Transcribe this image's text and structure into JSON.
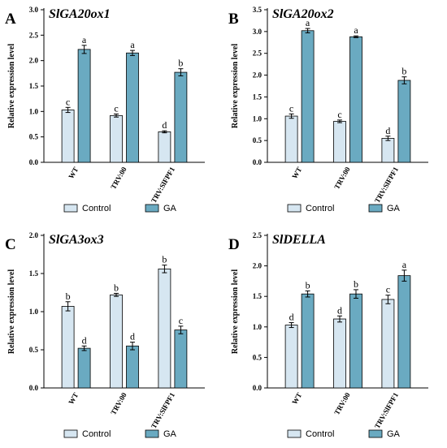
{
  "colors": {
    "control": "#d6e6f1",
    "ga": "#6aaac1",
    "axis": "#000000",
    "text": "#000000"
  },
  "chart_data": [
    {
      "type": "bar",
      "panel_letter": "A",
      "title": "SlGA20ox1",
      "ylabel": "Relative expression level",
      "xlabel": "",
      "categories": [
        "WT",
        "TRV:00",
        "TRV:SlFPF1"
      ],
      "ylim": [
        0,
        3.0
      ],
      "yticks": [
        0.0,
        0.5,
        1.0,
        1.5,
        2.0,
        2.5,
        3.0
      ],
      "ytick_labels": [
        "0.0",
        "0.5",
        "1.0",
        "1.5",
        "2.0",
        "2.5",
        "3.0"
      ],
      "series": [
        {
          "name": "Control",
          "values": [
            1.03,
            0.92,
            0.6
          ],
          "errors": [
            0.05,
            0.03,
            0.02
          ],
          "sig": [
            "c",
            "c",
            "d"
          ]
        },
        {
          "name": "GA",
          "values": [
            2.22,
            2.15,
            1.77
          ],
          "errors": [
            0.08,
            0.05,
            0.07
          ],
          "sig": [
            "a",
            "a",
            "b"
          ]
        }
      ],
      "legend": "bottom"
    },
    {
      "type": "bar",
      "panel_letter": "B",
      "title": "SlGA20ox2",
      "ylabel": "Relative expression level",
      "xlabel": "",
      "categories": [
        "WT",
        "TRV:00",
        "TRV:SlFPF1"
      ],
      "ylim": [
        0,
        3.5
      ],
      "yticks": [
        0.0,
        0.5,
        1.0,
        1.5,
        2.0,
        2.5,
        3.0,
        3.5
      ],
      "ytick_labels": [
        "0.0",
        "0.5",
        "1.0",
        "1.5",
        "2.0",
        "2.5",
        "3.0",
        "3.5"
      ],
      "series": [
        {
          "name": "Control",
          "values": [
            1.06,
            0.94,
            0.55
          ],
          "errors": [
            0.05,
            0.03,
            0.05
          ],
          "sig": [
            "c",
            "c",
            "d"
          ]
        },
        {
          "name": "GA",
          "values": [
            3.02,
            2.88,
            1.88
          ],
          "errors": [
            0.05,
            0.02,
            0.08
          ],
          "sig": [
            "a",
            "a",
            "b"
          ]
        }
      ],
      "legend": "bottom"
    },
    {
      "type": "bar",
      "panel_letter": "C",
      "title": "SlGA3ox3",
      "ylabel": "Relative expression level",
      "xlabel": "",
      "categories": [
        "WT",
        "TRV:00",
        "TRV:SlFPF1"
      ],
      "ylim": [
        0,
        2.0
      ],
      "yticks": [
        0.0,
        0.5,
        1.0,
        1.5,
        2.0
      ],
      "ytick_labels": [
        "0.0",
        "0.5",
        "1.0",
        "1.5",
        "2.0"
      ],
      "series": [
        {
          "name": "Control",
          "values": [
            1.07,
            1.22,
            1.56
          ],
          "errors": [
            0.06,
            0.02,
            0.05
          ],
          "sig": [
            "b",
            "b",
            "b"
          ]
        },
        {
          "name": "GA",
          "values": [
            0.52,
            0.55,
            0.76
          ],
          "errors": [
            0.03,
            0.05,
            0.05
          ],
          "sig": [
            "d",
            "d",
            "c"
          ]
        }
      ],
      "legend": "bottom"
    },
    {
      "type": "bar",
      "panel_letter": "D",
      "title": "SlDELLA",
      "ylabel": "Relative expression level",
      "xlabel": "",
      "categories": [
        "WT",
        "TRV:00",
        "TRV:SlFPF1"
      ],
      "ylim": [
        0,
        2.5
      ],
      "yticks": [
        0.0,
        0.5,
        1.0,
        1.5,
        2.0,
        2.5
      ],
      "ytick_labels": [
        "0.0",
        "0.5",
        "1.0",
        "1.5",
        "2.0",
        "2.5"
      ],
      "series": [
        {
          "name": "Control",
          "values": [
            1.03,
            1.13,
            1.45
          ],
          "errors": [
            0.04,
            0.05,
            0.07
          ],
          "sig": [
            "d",
            "d",
            "c"
          ]
        },
        {
          "name": "GA",
          "values": [
            1.54,
            1.54,
            1.84
          ],
          "errors": [
            0.05,
            0.07,
            0.09
          ],
          "sig": [
            "b",
            "b",
            "a"
          ]
        }
      ],
      "legend": "bottom"
    }
  ]
}
